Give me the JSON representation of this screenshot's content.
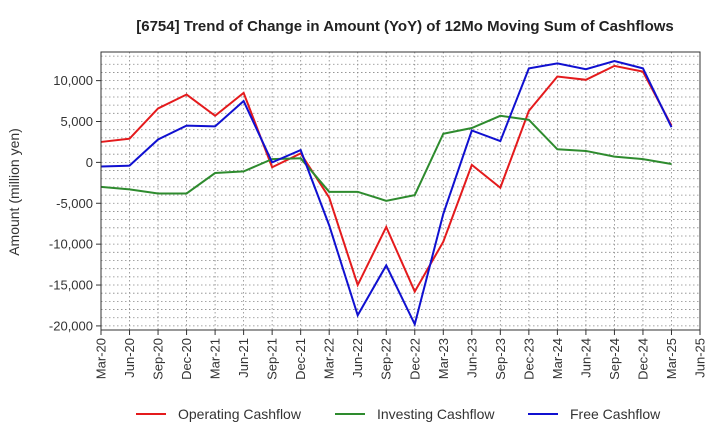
{
  "chart_data": {
    "type": "line",
    "title": "[6754]  Trend of Change in Amount (YoY) of 12Mo Moving Sum of Cashflows",
    "xlabel": "",
    "ylabel": "Amount (million yen)",
    "ylim": [
      -20500,
      13500
    ],
    "yticks": [
      10000,
      5000,
      0,
      -5000,
      -10000,
      -15000,
      -20000
    ],
    "ytick_labels": [
      "10,000",
      "5,000",
      "0",
      "-5,000",
      "-10,000",
      "-15,000",
      "-20,000"
    ],
    "categories": [
      "Mar-20",
      "Jun-20",
      "Sep-20",
      "Dec-20",
      "Mar-21",
      "Jun-21",
      "Sep-21",
      "Dec-21",
      "Mar-22",
      "Jun-22",
      "Sep-22",
      "Dec-22",
      "Mar-23",
      "Jun-23",
      "Sep-23",
      "Dec-23",
      "Mar-24",
      "Jun-24",
      "Sep-24",
      "Dec-24",
      "Mar-25",
      "Jun-25"
    ],
    "grid": true,
    "legend_position": "bottom",
    "series": [
      {
        "name": "Operating Cashflow",
        "color": "#e41a1c",
        "values": [
          2500,
          2900,
          6600,
          8300,
          5700,
          8500,
          -600,
          1100,
          -4300,
          -15000,
          -7900,
          -15800,
          -9700,
          -300,
          -3100,
          6300,
          10500,
          10100,
          11800,
          11100,
          4500,
          null
        ]
      },
      {
        "name": "Investing Cashflow",
        "color": "#2e8b2e",
        "values": [
          -3000,
          -3300,
          -3800,
          -3800,
          -1300,
          -1100,
          400,
          500,
          -3600,
          -3600,
          -4700,
          -4000,
          3500,
          4200,
          5700,
          5200,
          1600,
          1400,
          700,
          400,
          -200,
          null
        ]
      },
      {
        "name": "Free Cashflow",
        "color": "#1010d0",
        "values": [
          -500,
          -400,
          2800,
          4500,
          4400,
          7500,
          0,
          1500,
          -7700,
          -18700,
          -12600,
          -19800,
          -6300,
          3900,
          2600,
          11500,
          12100,
          11400,
          12400,
          11500,
          4300,
          null
        ]
      }
    ]
  }
}
